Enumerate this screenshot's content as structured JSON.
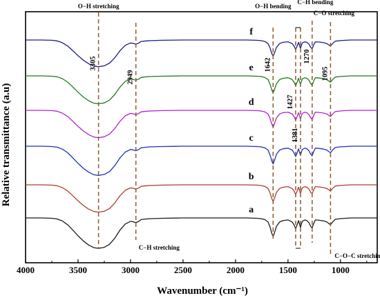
{
  "chart_data": {
    "type": "line",
    "xlabel": "Wavenumber (cm⁻¹)",
    "ylabel": "Relative transmittance (a.u)",
    "xlim": [
      4000,
      650
    ],
    "x_reversed": true,
    "xticks": [
      4000,
      3500,
      3000,
      2500,
      2000,
      1500,
      1000
    ],
    "x": [
      4000,
      3850,
      3750,
      3700,
      3650,
      3600,
      3550,
      3500,
      3450,
      3400,
      3350,
      3305,
      3250,
      3200,
      3150,
      3100,
      3050,
      3000,
      2980,
      2949,
      2920,
      2900,
      2850,
      2800,
      2700,
      2500,
      2300,
      2100,
      1900,
      1800,
      1760,
      1720,
      1690,
      1670,
      1655,
      1642,
      1630,
      1610,
      1580,
      1550,
      1500,
      1460,
      1440,
      1427,
      1415,
      1400,
      1381,
      1365,
      1340,
      1320,
      1300,
      1285,
      1270,
      1255,
      1240,
      1200,
      1160,
      1130,
      1110,
      1095,
      1075,
      1050,
      1000,
      950,
      900,
      850,
      800,
      700,
      650
    ],
    "series": [
      {
        "name": "f",
        "color": "#1a1a8c",
        "values": [
          0.0,
          0.0,
          0.01,
          0.03,
          0.09,
          0.2,
          0.36,
          0.53,
          0.68,
          0.8,
          0.88,
          0.9,
          0.87,
          0.78,
          0.6,
          0.36,
          0.18,
          0.1,
          0.11,
          0.14,
          0.1,
          0.05,
          0.03,
          0.02,
          0.01,
          0.0,
          0.0,
          0.0,
          0.0,
          0.01,
          0.02,
          0.05,
          0.12,
          0.28,
          0.45,
          0.55,
          0.45,
          0.25,
          0.12,
          0.08,
          0.06,
          0.12,
          0.22,
          0.32,
          0.22,
          0.08,
          0.28,
          0.1,
          0.06,
          0.08,
          0.14,
          0.24,
          0.3,
          0.16,
          0.06,
          0.07,
          0.09,
          0.12,
          0.17,
          0.2,
          0.12,
          0.04,
          0.02,
          0.01,
          0.0,
          0.0,
          0.0,
          0.0,
          0.0
        ]
      },
      {
        "name": "e",
        "color": "#1e7a1e",
        "values": [
          0.0,
          0.0,
          0.01,
          0.03,
          0.09,
          0.2,
          0.36,
          0.53,
          0.68,
          0.8,
          0.88,
          0.9,
          0.87,
          0.78,
          0.6,
          0.36,
          0.18,
          0.1,
          0.11,
          0.14,
          0.1,
          0.05,
          0.03,
          0.02,
          0.01,
          0.0,
          0.0,
          0.0,
          0.0,
          0.01,
          0.02,
          0.05,
          0.12,
          0.28,
          0.45,
          0.55,
          0.45,
          0.25,
          0.12,
          0.08,
          0.06,
          0.12,
          0.22,
          0.32,
          0.22,
          0.08,
          0.28,
          0.1,
          0.06,
          0.08,
          0.14,
          0.24,
          0.3,
          0.16,
          0.06,
          0.07,
          0.09,
          0.12,
          0.17,
          0.2,
          0.12,
          0.04,
          0.02,
          0.01,
          0.0,
          0.0,
          0.0,
          0.0,
          0.0
        ]
      },
      {
        "name": "d",
        "color": "#b020d0",
        "values": [
          0.0,
          0.0,
          0.01,
          0.03,
          0.09,
          0.2,
          0.36,
          0.53,
          0.68,
          0.8,
          0.88,
          0.9,
          0.87,
          0.78,
          0.6,
          0.36,
          0.18,
          0.1,
          0.11,
          0.14,
          0.1,
          0.05,
          0.03,
          0.02,
          0.01,
          0.0,
          0.0,
          0.0,
          0.0,
          0.01,
          0.02,
          0.05,
          0.12,
          0.28,
          0.45,
          0.55,
          0.45,
          0.25,
          0.12,
          0.08,
          0.06,
          0.12,
          0.22,
          0.32,
          0.22,
          0.08,
          0.28,
          0.1,
          0.06,
          0.08,
          0.14,
          0.24,
          0.3,
          0.16,
          0.06,
          0.07,
          0.09,
          0.12,
          0.17,
          0.2,
          0.12,
          0.04,
          0.02,
          0.01,
          0.0,
          0.0,
          0.0,
          0.0,
          0.0
        ]
      },
      {
        "name": "c",
        "color": "#1f2fb8",
        "values": [
          0.0,
          0.0,
          0.01,
          0.03,
          0.09,
          0.2,
          0.36,
          0.53,
          0.68,
          0.8,
          0.88,
          0.9,
          0.87,
          0.78,
          0.6,
          0.36,
          0.18,
          0.1,
          0.11,
          0.14,
          0.1,
          0.05,
          0.03,
          0.02,
          0.01,
          0.0,
          0.0,
          0.0,
          0.0,
          0.01,
          0.02,
          0.05,
          0.12,
          0.28,
          0.45,
          0.55,
          0.45,
          0.25,
          0.12,
          0.08,
          0.06,
          0.12,
          0.22,
          0.32,
          0.22,
          0.08,
          0.28,
          0.1,
          0.06,
          0.08,
          0.14,
          0.24,
          0.3,
          0.16,
          0.06,
          0.07,
          0.09,
          0.12,
          0.17,
          0.2,
          0.12,
          0.04,
          0.02,
          0.01,
          0.0,
          0.0,
          0.0,
          0.0,
          0.0
        ]
      },
      {
        "name": "b",
        "color": "#b03a2e",
        "values": [
          0.0,
          0.0,
          0.01,
          0.03,
          0.09,
          0.2,
          0.36,
          0.53,
          0.68,
          0.8,
          0.88,
          0.9,
          0.87,
          0.78,
          0.6,
          0.36,
          0.18,
          0.1,
          0.11,
          0.14,
          0.1,
          0.05,
          0.03,
          0.02,
          0.01,
          0.0,
          0.0,
          0.0,
          0.0,
          0.01,
          0.02,
          0.05,
          0.12,
          0.28,
          0.45,
          0.55,
          0.45,
          0.25,
          0.12,
          0.08,
          0.06,
          0.12,
          0.22,
          0.32,
          0.22,
          0.08,
          0.28,
          0.1,
          0.06,
          0.08,
          0.14,
          0.24,
          0.3,
          0.16,
          0.06,
          0.07,
          0.09,
          0.12,
          0.17,
          0.2,
          0.12,
          0.04,
          0.02,
          0.01,
          0.0,
          0.0,
          0.0,
          0.0,
          0.0
        ]
      },
      {
        "name": "a",
        "color": "#1a1a1a",
        "values": [
          0.0,
          0.0,
          0.01,
          0.03,
          0.09,
          0.2,
          0.36,
          0.53,
          0.68,
          0.8,
          0.88,
          0.9,
          0.87,
          0.78,
          0.6,
          0.36,
          0.18,
          0.1,
          0.11,
          0.14,
          0.1,
          0.05,
          0.03,
          0.02,
          0.01,
          0.0,
          0.0,
          0.0,
          0.0,
          0.01,
          0.02,
          0.05,
          0.12,
          0.28,
          0.45,
          0.55,
          0.45,
          0.25,
          0.12,
          0.08,
          0.06,
          0.12,
          0.22,
          0.32,
          0.22,
          0.08,
          0.28,
          0.1,
          0.06,
          0.08,
          0.14,
          0.24,
          0.3,
          0.16,
          0.06,
          0.07,
          0.09,
          0.12,
          0.17,
          0.2,
          0.12,
          0.04,
          0.02,
          0.01,
          0.0,
          0.0,
          0.0,
          0.0,
          0.0
        ]
      }
    ],
    "peak_markers": [
      {
        "label": "3305",
        "x": 3305
      },
      {
        "label": "2949",
        "x": 2949
      },
      {
        "label": "1642",
        "x": 1642
      },
      {
        "label": "1427",
        "x": 1427
      },
      {
        "label": "1381",
        "x": 1381
      },
      {
        "label": "1270",
        "x": 1270
      },
      {
        "label": "1095",
        "x": 1095
      }
    ],
    "annotations": [
      {
        "text": "O−H stretching",
        "x": 3305
      },
      {
        "text": "C−H stretching",
        "x": 2949
      },
      {
        "text": "O−H bending",
        "x": 1642
      },
      {
        "text": "C−H bending",
        "x": 1404
      },
      {
        "text": "C−O stretching",
        "x": 1270
      },
      {
        "text": "C−O−C stretching",
        "x": 1095
      }
    ],
    "grid": false,
    "legend": "none",
    "dash_color": "#8B5A2B"
  }
}
